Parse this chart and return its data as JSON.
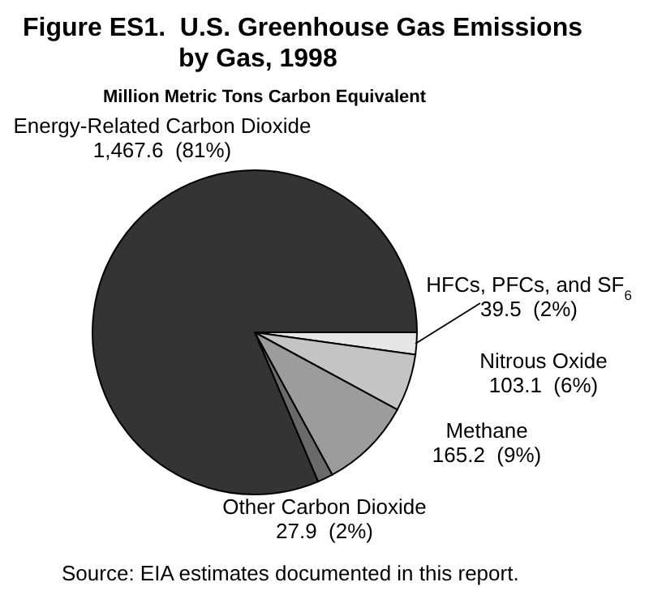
{
  "chart_data": {
    "type": "pie",
    "title": "Figure ES1.  U.S. Greenhouse Gas Emissions by Gas, 1998",
    "subtitle": "Million Metric Tons Carbon Equivalent",
    "categories": [
      "HFCs, PFCs, and SF$_{6}$",
      "Nitrous Oxide",
      "Methane",
      "Other Carbon Dioxide",
      "Energy-Related Carbon Dioxide"
    ],
    "values": [
      39.5,
      103.1,
      165.2,
      27.9,
      1467.6
    ],
    "value_labels": [
      "39.5  (2%)",
      "103.1  (6%)",
      "165.2  (9%)",
      "27.9  (2%)",
      "1,467.6  (81%)"
    ],
    "colors": [
      "#e6e6e6",
      "#c4c4c4",
      "#9c9c9c",
      "#6a6a6a",
      "#343434"
    ],
    "annotations": [
      "Source: EIA estimates documented in this report."
    ]
  }
}
